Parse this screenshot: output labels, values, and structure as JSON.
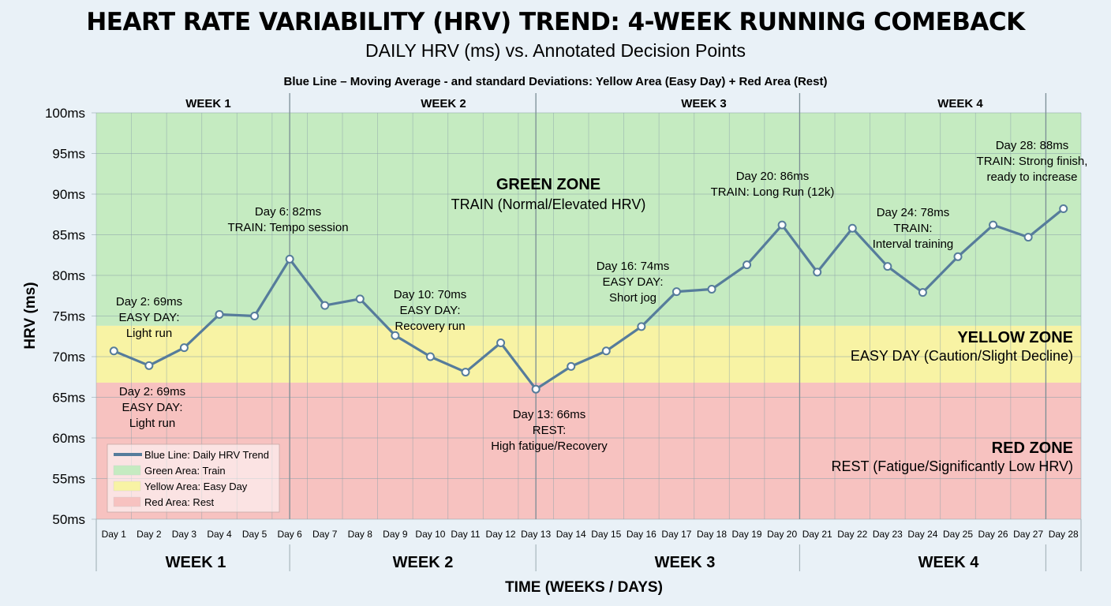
{
  "colors": {
    "line": "#567c9b",
    "green_zone": "#c5ebc1",
    "yellow_zone": "#f8f3a4",
    "red_zone": "#f7c2c0",
    "grid": "#8aa0a8"
  },
  "chart_data": {
    "type": "line",
    "title": "HEART RATE VARIABILITY (HRV) TREND: 4-WEEK RUNNING COMEBACK",
    "subtitle": "DAILY HRV (ms) vs. Annotated Decision Points",
    "description": "Blue Line – Moving Average - and standard Deviations: Yellow Area (Easy Day)  + Red Area (Rest)",
    "xlabel": "TIME (WEEKS / DAYS)",
    "ylabel": "HRV (ms)",
    "ylim": [
      50,
      100
    ],
    "yticks": [
      "50ms",
      "55ms",
      "60ms",
      "65ms",
      "70ms",
      "75ms",
      "80ms",
      "85ms",
      "90ms",
      "95ms",
      "100ms"
    ],
    "categories": [
      "Day 1",
      "Day 2",
      "Day 3",
      "Day 4",
      "Day 5",
      "Day 6",
      "Day 7",
      "Day 8",
      "Day 9",
      "Day 10",
      "Day 11",
      "Day 12",
      "Day 13",
      "Day 14",
      "Day 15",
      "Day 16",
      "Day 17",
      "Day 18",
      "Day 19",
      "Day 20",
      "Day 21",
      "Day 22",
      "Day 23",
      "Day 24",
      "Day 25",
      "Day 26",
      "Day 27",
      "Day 28"
    ],
    "series": [
      {
        "values": [
          70.7,
          68.9,
          71.1,
          75.2,
          75.0,
          82.0,
          76.3,
          77.1,
          72.6,
          70.0,
          68.1,
          71.7,
          66.0,
          68.8,
          70.7,
          73.7,
          78.0,
          78.3,
          81.3,
          86.2,
          80.4,
          85.8,
          81.1,
          77.9,
          82.3,
          86.2,
          84.7,
          88.2
        ]
      }
    ],
    "zones": [
      {
        "name": "GREEN ZONE",
        "label": "TRAIN (Normal/Elevated HRV)",
        "from": 73.8,
        "to": 100,
        "color": "#c5ebc1"
      },
      {
        "name": "YELLOW ZONE",
        "label": "EASY DAY (Caution/Slight Decline)",
        "from": 66.8,
        "to": 73.8,
        "color": "#f8f3a4"
      },
      {
        "name": "RED ZONE",
        "label": "REST (Fatigue/Significantly Low HRV)",
        "from": 50,
        "to": 66.8,
        "color": "#f7c2c0"
      }
    ],
    "weeks_top": [
      "WEEK 1",
      "WEEK 2",
      "WEEK 3",
      "WEEK 4"
    ],
    "weeks_bottom": [
      "WEEK 1",
      "WEEK 2",
      "WEEK 3",
      "WEEK 4"
    ],
    "annotations": [
      {
        "lines": [
          "Day 2: 69ms",
          "EASY DAY:",
          "Light run"
        ]
      },
      {
        "lines": [
          "Day 2: 69ms",
          "EASY DAY:",
          "Light run"
        ]
      },
      {
        "lines": [
          "Day 6: 82ms",
          "TRAIN: Tempo session"
        ]
      },
      {
        "lines": [
          "Day 10: 70ms",
          "EASY DAY:",
          "Recovery run"
        ]
      },
      {
        "lines": [
          "Day 13: 66ms",
          "REST:",
          "High fatigue/Recovery"
        ]
      },
      {
        "lines": [
          "Day 16: 74ms",
          "EASY DAY:",
          "Short jog"
        ]
      },
      {
        "lines": [
          "Day 20: 86ms",
          "TRAIN: Long Run (12k)"
        ]
      },
      {
        "lines": [
          "Day 24: 78ms",
          "TRAIN:",
          "Interval training"
        ]
      },
      {
        "lines": [
          "Day 28: 88ms",
          "TRAIN: Strong finish,",
          "ready to increase"
        ]
      }
    ],
    "legend": [
      {
        "label": "Blue Line: Daily HRV Trend",
        "kind": "line",
        "color": "#567c9b"
      },
      {
        "label": "Green Area: Train",
        "kind": "area",
        "color": "#c5ebc1"
      },
      {
        "label": "Yellow Area: Easy Day",
        "kind": "area",
        "color": "#f8f3a4"
      },
      {
        "label": "Red Area: Rest",
        "kind": "area",
        "color": "#f7c2c0"
      }
    ]
  }
}
